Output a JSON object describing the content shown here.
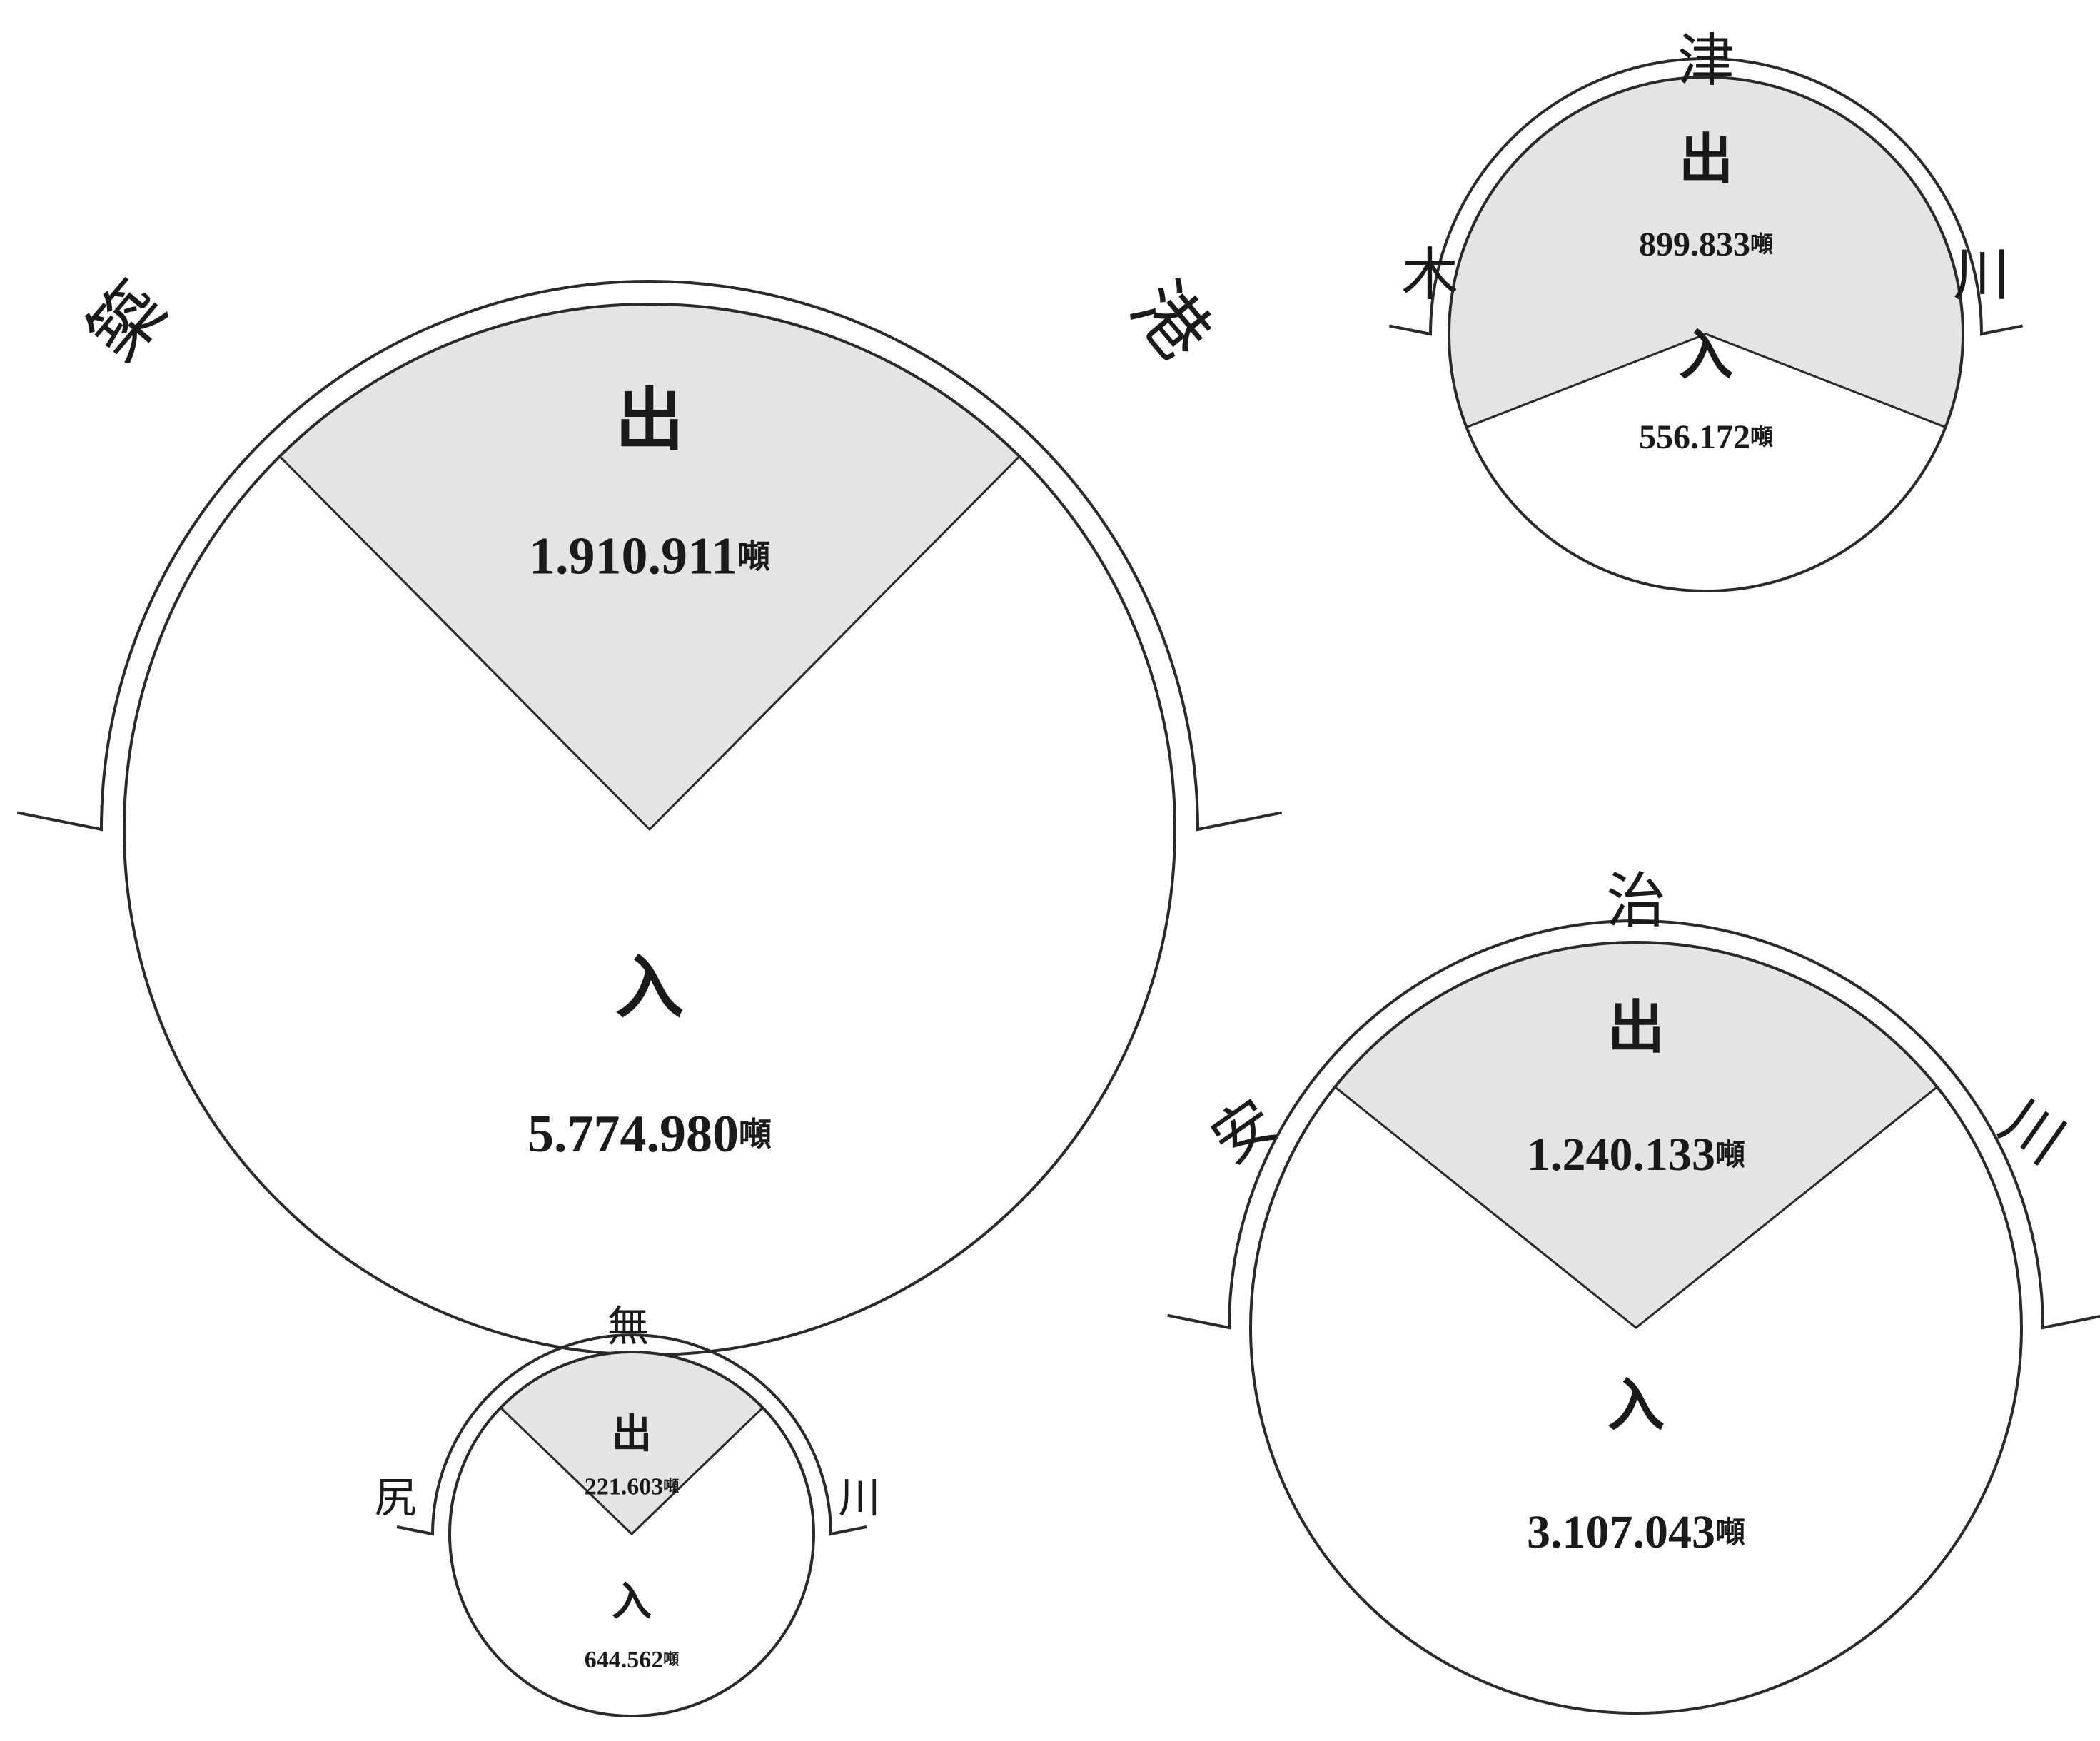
{
  "chart_data": [
    {
      "type": "pie",
      "port_chars": [
        "築",
        "港"
      ],
      "slices": [
        {
          "label": "出",
          "value": 1910911,
          "value_text": "1.910.911",
          "unit": "噸"
        },
        {
          "label": "入",
          "value": 5774980,
          "value_text": "5.774.980",
          "unit": "噸"
        }
      ]
    },
    {
      "type": "pie",
      "port_chars": [
        "木",
        "津",
        "川"
      ],
      "slices": [
        {
          "label": "出",
          "value": 899833,
          "value_text": "899.833",
          "unit": "噸"
        },
        {
          "label": "入",
          "value": 556172,
          "value_text": "556.172",
          "unit": "噸"
        }
      ]
    },
    {
      "type": "pie",
      "port_chars": [
        "安",
        "治",
        "川"
      ],
      "slices": [
        {
          "label": "出",
          "value": 1240133,
          "value_text": "1.240.133",
          "unit": "噸"
        },
        {
          "label": "入",
          "value": 3107043,
          "value_text": "3.107.043",
          "unit": "噸"
        }
      ]
    },
    {
      "type": "pie",
      "port_chars": [
        "尻",
        "無",
        "川"
      ],
      "slices": [
        {
          "label": "出",
          "value": 221603,
          "value_text": "221.603",
          "unit": "噸"
        },
        {
          "label": "入",
          "value": 644562,
          "value_text": "644.562",
          "unit": "噸"
        }
      ]
    }
  ],
  "colors": {
    "outbound_fill": "#e4e4e4",
    "inbound_fill": "#ffffff",
    "stroke": "#2a2a2a"
  }
}
